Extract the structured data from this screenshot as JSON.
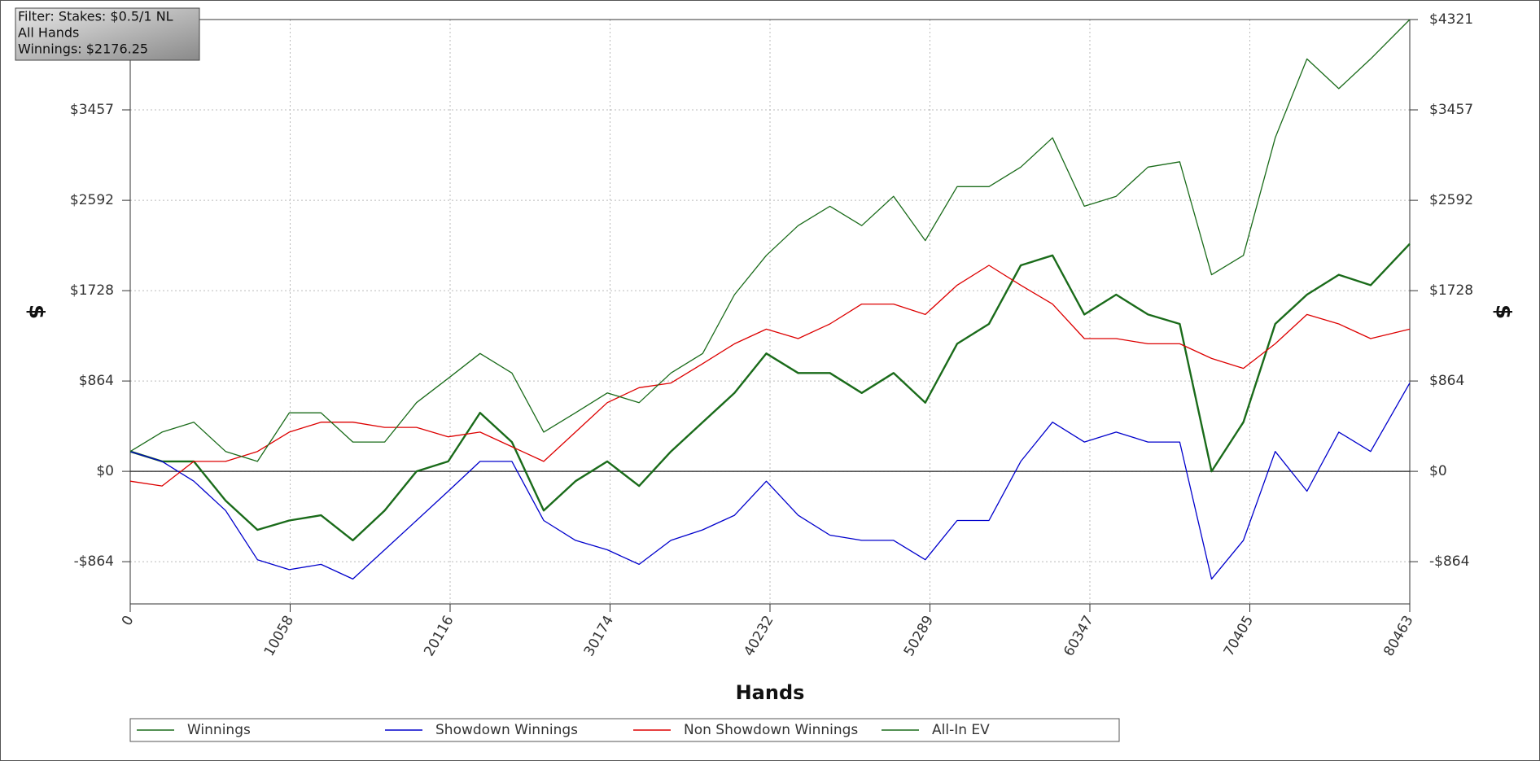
{
  "chart_data": {
    "type": "line",
    "annotation": [
      "Filter: Stakes: $0.5/1 NL",
      "All Hands",
      "Winnings: $2176.25"
    ],
    "xlabel": "Hands",
    "ylabel": "$",
    "x": [
      0,
      2000,
      4000,
      6000,
      8000,
      10000,
      12000,
      14000,
      16000,
      18000,
      20000,
      22000,
      24000,
      26000,
      28000,
      30000,
      32000,
      34000,
      36000,
      38000,
      40000,
      42000,
      44000,
      46000,
      48000,
      50000,
      52000,
      54000,
      56000,
      58000,
      60000,
      62000,
      64000,
      66000,
      68000,
      70000,
      72000,
      74000,
      76000,
      78000,
      80463
    ],
    "series": [
      {
        "name": "Winnings",
        "color": "#1a6b1a",
        "values": [
          190,
          95,
          95,
          -280,
          -560,
          -470,
          -420,
          -660,
          -375,
          0,
          95,
          560,
          280,
          -375,
          -94,
          95,
          -140,
          190,
          470,
          750,
          1127,
          940,
          940,
          750,
          940,
          657,
          1220,
          1410,
          1970,
          2065,
          1500,
          1690,
          1500,
          1410,
          0,
          470,
          1410,
          1690,
          1880,
          1780,
          2176
        ]
      },
      {
        "name": "Showdown Winnings",
        "color": "#0000cc",
        "values": [
          190,
          95,
          -94,
          -375,
          -845,
          -940,
          -890,
          -1030,
          -750,
          -470,
          -190,
          95,
          95,
          -470,
          -660,
          -750,
          -890,
          -660,
          -560,
          -420,
          -94,
          -420,
          -610,
          -660,
          -660,
          -845,
          -470,
          -470,
          95,
          470,
          280,
          375,
          280,
          280,
          -1030,
          -660,
          190,
          -190,
          375,
          190,
          845
        ]
      },
      {
        "name": "Non Showdown Winnings",
        "color": "#dd0000",
        "values": [
          -94,
          -140,
          95,
          95,
          190,
          375,
          470,
          470,
          420,
          420,
          330,
          375,
          235,
          95,
          375,
          657,
          800,
          845,
          1030,
          1220,
          1360,
          1270,
          1410,
          1600,
          1600,
          1500,
          1780,
          1970,
          1780,
          1600,
          1270,
          1270,
          1220,
          1220,
          1080,
          985,
          1220,
          1500,
          1410,
          1270,
          1360
        ]
      },
      {
        "name": "All-In EV",
        "color": "#1a6b1a",
        "values": [
          190,
          375,
          470,
          190,
          95,
          560,
          560,
          280,
          280,
          657,
          890,
          1127,
          940,
          375,
          560,
          750,
          657,
          940,
          1127,
          1690,
          2065,
          2350,
          2535,
          2350,
          2630,
          2207,
          2723,
          2723,
          2910,
          3190,
          2535,
          2630,
          2910,
          2960,
          1880,
          2065,
          3190,
          3944,
          3660,
          3944,
          4321
        ]
      }
    ],
    "xlim": [
      0,
      80463
    ],
    "xticks": [
      0,
      10058,
      20116,
      30174,
      40232,
      50289,
      60347,
      70405,
      80463
    ],
    "ylim": [
      -1268,
      4321
    ],
    "yticks": [
      {
        "value": -864,
        "label": "-$864"
      },
      {
        "value": 0,
        "label": "$0"
      },
      {
        "value": 864,
        "label": "$864"
      },
      {
        "value": 1728,
        "label": "$1728"
      },
      {
        "value": 2592,
        "label": "$2592"
      },
      {
        "value": 3457,
        "label": "$3457"
      },
      {
        "value": 4321,
        "label": "$4321"
      }
    ],
    "grid": true
  }
}
